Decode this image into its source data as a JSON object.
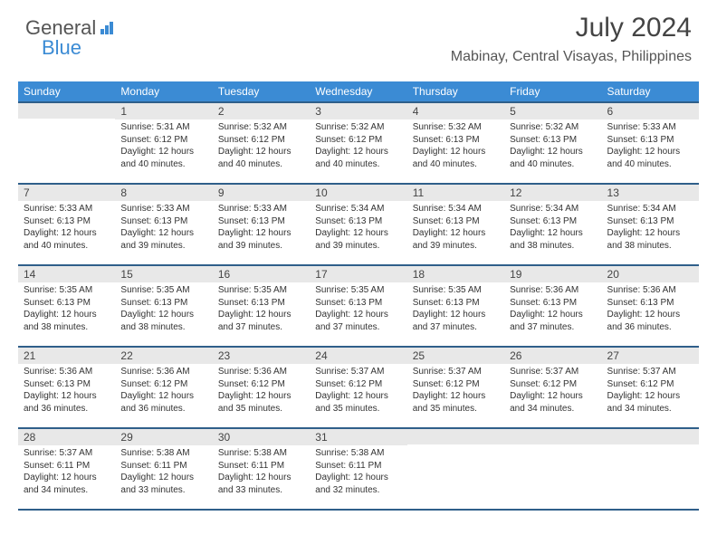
{
  "logo": {
    "general": "General",
    "blue": "Blue"
  },
  "header": {
    "month_title": "July 2024",
    "location": "Mabinay, Central Visayas, Philippines"
  },
  "colors": {
    "header_bg": "#3b8bd4",
    "header_border": "#2f5f8a",
    "daynum_bg": "#e8e8e8",
    "text": "#333333"
  },
  "calendar": {
    "day_headers": [
      "Sunday",
      "Monday",
      "Tuesday",
      "Wednesday",
      "Thursday",
      "Friday",
      "Saturday"
    ],
    "weeks": [
      [
        {
          "num": "",
          "sunrise": "",
          "sunset": "",
          "daylight": ""
        },
        {
          "num": "1",
          "sunrise": "Sunrise: 5:31 AM",
          "sunset": "Sunset: 6:12 PM",
          "daylight": "Daylight: 12 hours and 40 minutes."
        },
        {
          "num": "2",
          "sunrise": "Sunrise: 5:32 AM",
          "sunset": "Sunset: 6:12 PM",
          "daylight": "Daylight: 12 hours and 40 minutes."
        },
        {
          "num": "3",
          "sunrise": "Sunrise: 5:32 AM",
          "sunset": "Sunset: 6:12 PM",
          "daylight": "Daylight: 12 hours and 40 minutes."
        },
        {
          "num": "4",
          "sunrise": "Sunrise: 5:32 AM",
          "sunset": "Sunset: 6:13 PM",
          "daylight": "Daylight: 12 hours and 40 minutes."
        },
        {
          "num": "5",
          "sunrise": "Sunrise: 5:32 AM",
          "sunset": "Sunset: 6:13 PM",
          "daylight": "Daylight: 12 hours and 40 minutes."
        },
        {
          "num": "6",
          "sunrise": "Sunrise: 5:33 AM",
          "sunset": "Sunset: 6:13 PM",
          "daylight": "Daylight: 12 hours and 40 minutes."
        }
      ],
      [
        {
          "num": "7",
          "sunrise": "Sunrise: 5:33 AM",
          "sunset": "Sunset: 6:13 PM",
          "daylight": "Daylight: 12 hours and 40 minutes."
        },
        {
          "num": "8",
          "sunrise": "Sunrise: 5:33 AM",
          "sunset": "Sunset: 6:13 PM",
          "daylight": "Daylight: 12 hours and 39 minutes."
        },
        {
          "num": "9",
          "sunrise": "Sunrise: 5:33 AM",
          "sunset": "Sunset: 6:13 PM",
          "daylight": "Daylight: 12 hours and 39 minutes."
        },
        {
          "num": "10",
          "sunrise": "Sunrise: 5:34 AM",
          "sunset": "Sunset: 6:13 PM",
          "daylight": "Daylight: 12 hours and 39 minutes."
        },
        {
          "num": "11",
          "sunrise": "Sunrise: 5:34 AM",
          "sunset": "Sunset: 6:13 PM",
          "daylight": "Daylight: 12 hours and 39 minutes."
        },
        {
          "num": "12",
          "sunrise": "Sunrise: 5:34 AM",
          "sunset": "Sunset: 6:13 PM",
          "daylight": "Daylight: 12 hours and 38 minutes."
        },
        {
          "num": "13",
          "sunrise": "Sunrise: 5:34 AM",
          "sunset": "Sunset: 6:13 PM",
          "daylight": "Daylight: 12 hours and 38 minutes."
        }
      ],
      [
        {
          "num": "14",
          "sunrise": "Sunrise: 5:35 AM",
          "sunset": "Sunset: 6:13 PM",
          "daylight": "Daylight: 12 hours and 38 minutes."
        },
        {
          "num": "15",
          "sunrise": "Sunrise: 5:35 AM",
          "sunset": "Sunset: 6:13 PM",
          "daylight": "Daylight: 12 hours and 38 minutes."
        },
        {
          "num": "16",
          "sunrise": "Sunrise: 5:35 AM",
          "sunset": "Sunset: 6:13 PM",
          "daylight": "Daylight: 12 hours and 37 minutes."
        },
        {
          "num": "17",
          "sunrise": "Sunrise: 5:35 AM",
          "sunset": "Sunset: 6:13 PM",
          "daylight": "Daylight: 12 hours and 37 minutes."
        },
        {
          "num": "18",
          "sunrise": "Sunrise: 5:35 AM",
          "sunset": "Sunset: 6:13 PM",
          "daylight": "Daylight: 12 hours and 37 minutes."
        },
        {
          "num": "19",
          "sunrise": "Sunrise: 5:36 AM",
          "sunset": "Sunset: 6:13 PM",
          "daylight": "Daylight: 12 hours and 37 minutes."
        },
        {
          "num": "20",
          "sunrise": "Sunrise: 5:36 AM",
          "sunset": "Sunset: 6:13 PM",
          "daylight": "Daylight: 12 hours and 36 minutes."
        }
      ],
      [
        {
          "num": "21",
          "sunrise": "Sunrise: 5:36 AM",
          "sunset": "Sunset: 6:13 PM",
          "daylight": "Daylight: 12 hours and 36 minutes."
        },
        {
          "num": "22",
          "sunrise": "Sunrise: 5:36 AM",
          "sunset": "Sunset: 6:12 PM",
          "daylight": "Daylight: 12 hours and 36 minutes."
        },
        {
          "num": "23",
          "sunrise": "Sunrise: 5:36 AM",
          "sunset": "Sunset: 6:12 PM",
          "daylight": "Daylight: 12 hours and 35 minutes."
        },
        {
          "num": "24",
          "sunrise": "Sunrise: 5:37 AM",
          "sunset": "Sunset: 6:12 PM",
          "daylight": "Daylight: 12 hours and 35 minutes."
        },
        {
          "num": "25",
          "sunrise": "Sunrise: 5:37 AM",
          "sunset": "Sunset: 6:12 PM",
          "daylight": "Daylight: 12 hours and 35 minutes."
        },
        {
          "num": "26",
          "sunrise": "Sunrise: 5:37 AM",
          "sunset": "Sunset: 6:12 PM",
          "daylight": "Daylight: 12 hours and 34 minutes."
        },
        {
          "num": "27",
          "sunrise": "Sunrise: 5:37 AM",
          "sunset": "Sunset: 6:12 PM",
          "daylight": "Daylight: 12 hours and 34 minutes."
        }
      ],
      [
        {
          "num": "28",
          "sunrise": "Sunrise: 5:37 AM",
          "sunset": "Sunset: 6:11 PM",
          "daylight": "Daylight: 12 hours and 34 minutes."
        },
        {
          "num": "29",
          "sunrise": "Sunrise: 5:38 AM",
          "sunset": "Sunset: 6:11 PM",
          "daylight": "Daylight: 12 hours and 33 minutes."
        },
        {
          "num": "30",
          "sunrise": "Sunrise: 5:38 AM",
          "sunset": "Sunset: 6:11 PM",
          "daylight": "Daylight: 12 hours and 33 minutes."
        },
        {
          "num": "31",
          "sunrise": "Sunrise: 5:38 AM",
          "sunset": "Sunset: 6:11 PM",
          "daylight": "Daylight: 12 hours and 32 minutes."
        },
        {
          "num": "",
          "sunrise": "",
          "sunset": "",
          "daylight": ""
        },
        {
          "num": "",
          "sunrise": "",
          "sunset": "",
          "daylight": ""
        },
        {
          "num": "",
          "sunrise": "",
          "sunset": "",
          "daylight": ""
        }
      ]
    ]
  }
}
